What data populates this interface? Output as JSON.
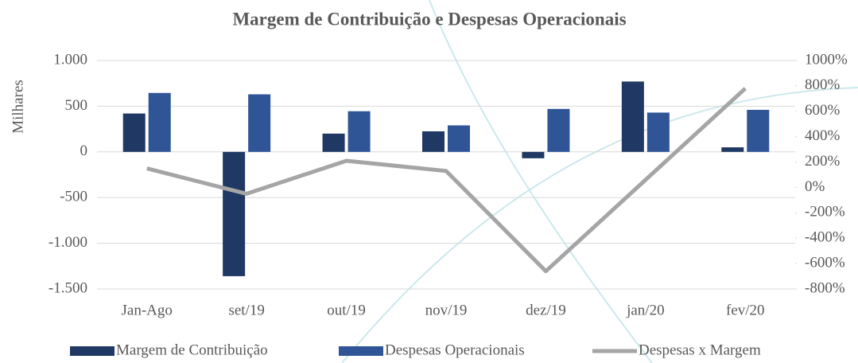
{
  "chart_data": {
    "type": "bar_line",
    "title": "Margem de Contribuição e Despesas Operacionais",
    "y_label": "Milhares",
    "categories": [
      "Jan-Ago",
      "set/19",
      "out/19",
      "nov/19",
      "dez/19",
      "jan/20",
      "fev/20"
    ],
    "series": [
      {
        "name": "Margem de Contribuição",
        "color": "#203864",
        "type": "bar",
        "values": [
          420,
          -1360,
          200,
          225,
          -70,
          770,
          50
        ]
      },
      {
        "name": "Despesas Operacionais",
        "color": "#2f5597",
        "type": "bar",
        "values": [
          645,
          630,
          445,
          290,
          470,
          430,
          460
        ]
      },
      {
        "name": "Despesas x Margem",
        "color": "#a5a5a5",
        "type": "line",
        "axis": "y2",
        "values": [
          150,
          -50,
          210,
          130,
          -660,
          60,
          780
        ]
      }
    ],
    "ylim": [
      -1500,
      1000
    ],
    "yticks": [
      {
        "value": 1000,
        "label": "1.000"
      },
      500,
      0,
      -500,
      {
        "value": -1000,
        "label": "-1.000"
      },
      {
        "value": -1500,
        "label": "-1.500"
      }
    ],
    "y2lim": [
      -800,
      1000
    ],
    "y2ticks": [
      {
        "value": 1000,
        "label": "1000%"
      },
      {
        "value": 800,
        "label": "800%"
      },
      {
        "value": 600,
        "label": "600%"
      },
      {
        "value": 400,
        "label": "400%"
      },
      {
        "value": 200,
        "label": "200%"
      },
      {
        "value": 0,
        "label": "0%"
      },
      {
        "value": -200,
        "label": "-200%"
      },
      {
        "value": -400,
        "label": "-400%"
      },
      {
        "value": -600,
        "label": "-600%"
      },
      {
        "value": -800,
        "label": "-800%"
      }
    ],
    "grid": true,
    "legend": "bottom"
  }
}
